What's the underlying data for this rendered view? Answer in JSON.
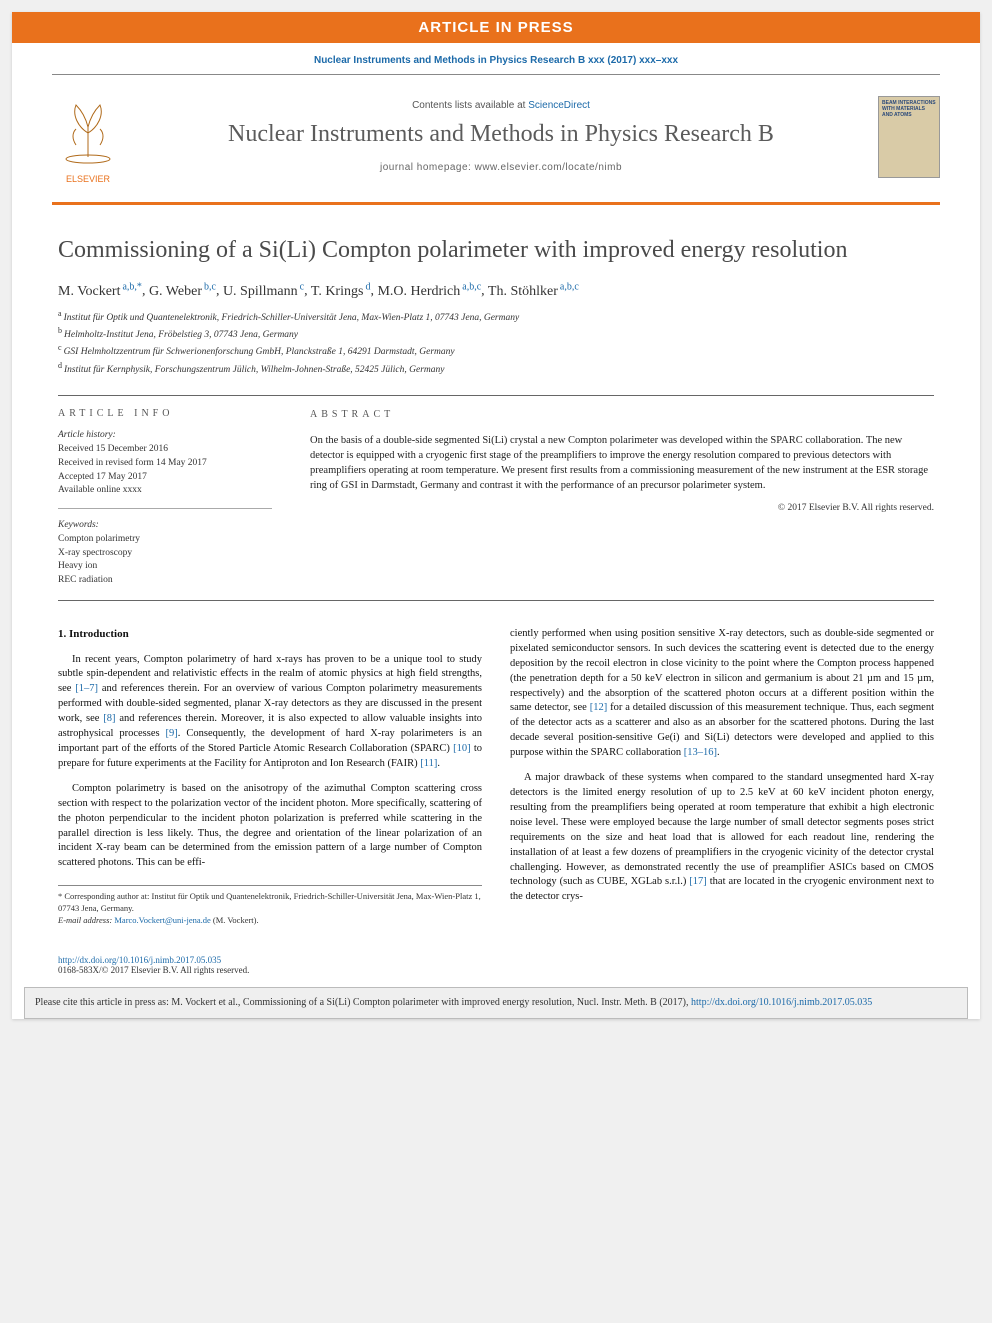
{
  "banner": {
    "text": "ARTICLE IN PRESS"
  },
  "citation_top": "Nuclear Instruments and Methods in Physics Research B xxx (2017) xxx–xxx",
  "masthead": {
    "elsevier_label": "ELSEVIER",
    "contents_prefix": "Contents lists available at ",
    "contents_link": "ScienceDirect",
    "journal_name": "Nuclear Instruments and Methods in Physics Research B",
    "homepage": "journal homepage: www.elsevier.com/locate/nimb",
    "cover_text": "BEAM INTERACTIONS WITH MATERIALS AND ATOMS",
    "logo_color": "#e9711c",
    "border_color": "#e9711c"
  },
  "title": "Commissioning of a Si(Li) Compton polarimeter with improved energy resolution",
  "authors": [
    {
      "name": "M. Vockert",
      "aff": "a,b,*"
    },
    {
      "name": "G. Weber",
      "aff": "b,c"
    },
    {
      "name": "U. Spillmann",
      "aff": "c"
    },
    {
      "name": "T. Krings",
      "aff": "d"
    },
    {
      "name": "M.O. Herdrich",
      "aff": "a,b,c"
    },
    {
      "name": "Th. Stöhlker",
      "aff": "a,b,c"
    }
  ],
  "affiliations": [
    {
      "label": "a",
      "text": "Institut für Optik und Quantenelektronik, Friedrich-Schiller-Universität Jena, Max-Wien-Platz 1, 07743 Jena, Germany"
    },
    {
      "label": "b",
      "text": "Helmholtz-Institut Jena, Fröbelstieg 3, 07743 Jena, Germany"
    },
    {
      "label": "c",
      "text": "GSI Helmholtzzentrum für Schwerionenforschung GmbH, Planckstraße 1, 64291 Darmstadt, Germany"
    },
    {
      "label": "d",
      "text": "Institut für Kernphysik, Forschungszentrum Jülich, Wilhelm-Johnen-Straße, 52425 Jülich, Germany"
    }
  ],
  "info": {
    "heading": "ARTICLE INFO",
    "history_heading": "Article history:",
    "history": [
      "Received 15 December 2016",
      "Received in revised form 14 May 2017",
      "Accepted 17 May 2017",
      "Available online xxxx"
    ],
    "keywords_heading": "Keywords:",
    "keywords": [
      "Compton polarimetry",
      "X-ray spectroscopy",
      "Heavy ion",
      "REC radiation"
    ]
  },
  "abstract": {
    "heading": "ABSTRACT",
    "text": "On the basis of a double-side segmented Si(Li) crystal a new Compton polarimeter was developed within the SPARC collaboration. The new detector is equipped with a cryogenic first stage of the preamplifiers to improve the energy resolution compared to previous detectors with preamplifiers operating at room temperature. We present first results from a commissioning measurement of the new instrument at the ESR storage ring of GSI in Darmstadt, Germany and contrast it with the performance of an precursor polarimeter system.",
    "copyright": "© 2017 Elsevier B.V. All rights reserved."
  },
  "body": {
    "section1_head": "1. Introduction",
    "col1_p1": "In recent years, Compton polarimetry of hard x-rays has proven to be a unique tool to study subtle spin-dependent and relativistic effects in the realm of atomic physics at high field strengths, see [1–7] and references therein. For an overview of various Compton polarimetry measurements performed with double-sided segmented, planar X-ray detectors as they are discussed in the present work, see [8] and references therein. Moreover, it is also expected to allow valuable insights into astrophysical processes [9]. Consequently, the development of hard X-ray polarimeters is an important part of the efforts of the Stored Particle Atomic Research Collaboration (SPARC) [10] to prepare for future experiments at the Facility for Antiproton and Ion Research (FAIR) [11].",
    "col1_p2": "Compton polarimetry is based on the anisotropy of the azimuthal Compton scattering cross section with respect to the polarization vector of the incident photon. More specifically, scattering of the photon perpendicular to the incident photon polarization is preferred while scattering in the parallel direction is less likely. Thus, the degree and orientation of the linear polarization of an incident X-ray beam can be determined from the emission pattern of a large number of Compton scattered photons. This can be effi-",
    "col2_p1": "ciently performed when using position sensitive X-ray detectors, such as double-side segmented or pixelated semiconductor sensors. In such devices the scattering event is detected due to the energy deposition by the recoil electron in close vicinity to the point where the Compton process happened (the penetration depth for a 50 keV electron in silicon and germanium is about 21 µm and 15 µm, respectively) and the absorption of the scattered photon occurs at a different position within the same detector, see [12] for a detailed discussion of this measurement technique. Thus, each segment of the detector acts as a scatterer and also as an absorber for the scattered photons. During the last decade several position-sensitive Ge(i) and Si(Li) detectors were developed and applied to this purpose within the SPARC collaboration [13–16].",
    "col2_p2": "A major drawback of these systems when compared to the standard unsegmented hard X-ray detectors is the limited energy resolution of up to 2.5 keV at 60 keV incident photon energy, resulting from the preamplifiers being operated at room temperature that exhibit a high electronic noise level. These were employed because the large number of small detector segments poses strict requirements on the size and heat load that is allowed for each readout line, rendering the installation of at least a few dozens of preamplifiers in the cryogenic vicinity of the detector crystal challenging. However, as demonstrated recently the use of preamplifier ASICs based on CMOS technology (such as CUBE, XGLab s.r.l.) [17] that are located in the cryogenic environment next to the detector crys-"
  },
  "footnote": {
    "corr": "* Corresponding author at: Institut für Optik und Quantenelektronik, Friedrich-Schiller-Universität Jena, Max-Wien-Platz 1, 07743 Jena, Germany.",
    "email_label": "E-mail address:",
    "email": "Marco.Vockert@uni-jena.de",
    "email_who": " (M. Vockert)."
  },
  "bottom": {
    "doi": "http://dx.doi.org/10.1016/j.nimb.2017.05.035",
    "issn": "0168-583X/© 2017 Elsevier B.V. All rights reserved."
  },
  "citebox": {
    "prefix": "Please cite this article in press as: M. Vockert et al., Commissioning of a Si(Li) Compton polarimeter with improved energy resolution, Nucl. Instr. Meth. B (2017), ",
    "link": "http://dx.doi.org/10.1016/j.nimb.2017.05.035"
  },
  "colors": {
    "accent": "#e9711c",
    "link": "#1c6aa9",
    "banner_text": "#ffffff",
    "page_bg": "#ffffff",
    "text": "#111111"
  }
}
